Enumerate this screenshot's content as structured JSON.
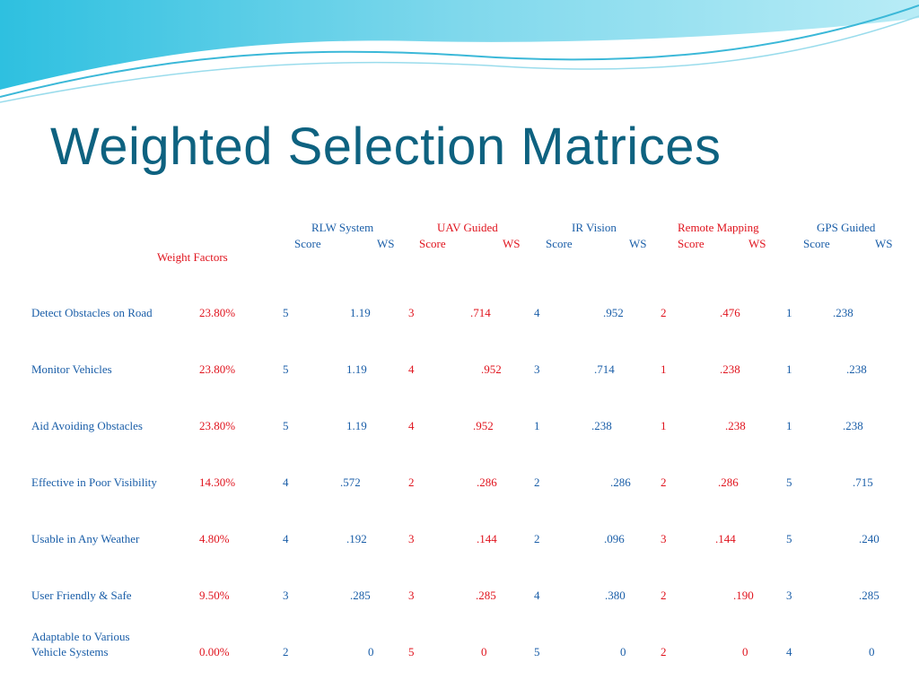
{
  "title": "Weighted Selection Matrices",
  "colors": {
    "title": "#0e6280",
    "blue_text": "#1a5ea8",
    "red_text": "#e0141e"
  },
  "table": {
    "weight_header": "Weight Factors",
    "score_label": "Score",
    "ws_label": "WS",
    "systems": [
      "RLW System",
      "UAV Guided",
      "IR Vision",
      "Remote Mapping",
      "GPS Guided"
    ],
    "rows": [
      {
        "factor": "Detect Obstacles on Road",
        "weight": "23.80%",
        "cells": [
          [
            "5",
            "1.19"
          ],
          [
            "3",
            ".714"
          ],
          [
            "4",
            ".952"
          ],
          [
            "2",
            ".476"
          ],
          [
            "1",
            ".238"
          ]
        ]
      },
      {
        "factor": "Monitor Vehicles",
        "weight": "23.80%",
        "cells": [
          [
            "5",
            "1.19"
          ],
          [
            "4",
            ".952"
          ],
          [
            "3",
            ".714"
          ],
          [
            "1",
            ".238"
          ],
          [
            "1",
            ".238"
          ]
        ]
      },
      {
        "factor": "Aid Avoiding Obstacles",
        "weight": "23.80%",
        "cells": [
          [
            "5",
            "1.19"
          ],
          [
            "4",
            ".952"
          ],
          [
            "1",
            ".238"
          ],
          [
            "1",
            ".238"
          ],
          [
            "1",
            ".238"
          ]
        ]
      },
      {
        "factor": "Effective in Poor Visibility",
        "weight": "14.30%",
        "cells": [
          [
            "4",
            ".572"
          ],
          [
            "2",
            ".286"
          ],
          [
            "2",
            ".286"
          ],
          [
            "2",
            ".286"
          ],
          [
            "5",
            ".715"
          ]
        ]
      },
      {
        "factor": "Usable in Any Weather",
        "weight": "4.80%",
        "cells": [
          [
            "4",
            ".192"
          ],
          [
            "3",
            ".144"
          ],
          [
            "2",
            ".096"
          ],
          [
            "3",
            ".144"
          ],
          [
            "5",
            ".240"
          ]
        ]
      },
      {
        "factor": "User Friendly & Safe",
        "weight": "9.50%",
        "cells": [
          [
            "3",
            ".285"
          ],
          [
            "3",
            ".285"
          ],
          [
            "4",
            ".380"
          ],
          [
            "2",
            ".190"
          ],
          [
            "3",
            ".285"
          ]
        ]
      },
      {
        "factor": "Adaptable to Various Vehicle Systems",
        "weight": "0.00%",
        "cells": [
          [
            "2",
            "0"
          ],
          [
            "5",
            "0"
          ],
          [
            "5",
            "0"
          ],
          [
            "2",
            "0"
          ],
          [
            "4",
            "0"
          ]
        ]
      }
    ]
  }
}
